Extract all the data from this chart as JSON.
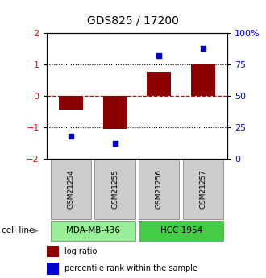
{
  "title": "GDS825 / 17200",
  "samples": [
    "GSM21254",
    "GSM21255",
    "GSM21256",
    "GSM21257"
  ],
  "log_ratios": [
    -0.45,
    -1.05,
    0.78,
    1.0
  ],
  "percentile_ranks": [
    18,
    12,
    82,
    88
  ],
  "cell_lines": [
    {
      "name": "MDA-MB-436",
      "samples": [
        0,
        1
      ],
      "color": "#99ee99"
    },
    {
      "name": "HCC 1954",
      "samples": [
        2,
        3
      ],
      "color": "#44cc44"
    }
  ],
  "ylim": [
    -2,
    2
  ],
  "yticks_left": [
    -2,
    -1,
    0,
    1,
    2
  ],
  "yticks_right": [
    0,
    25,
    50,
    75,
    100
  ],
  "bar_color": "#8b0000",
  "dot_color": "#0000cc",
  "hline0_color": "#cc0000",
  "hline_pm1_color": "#000000",
  "bar_width": 0.55,
  "legend_items": [
    {
      "label": "log ratio",
      "color": "#8b0000"
    },
    {
      "label": "percentile rank within the sample",
      "color": "#0000cc"
    }
  ],
  "sample_box_color": "#cccccc",
  "cell_line_left_color": "#99ee99",
  "cell_line_right_color": "#44cc44"
}
